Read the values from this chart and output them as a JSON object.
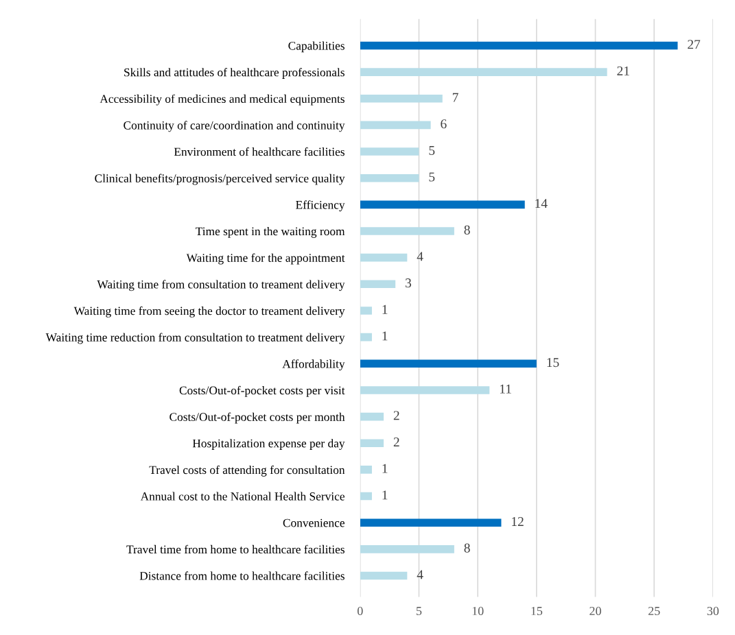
{
  "chart_data": {
    "type": "bar",
    "orientation": "horizontal",
    "categories": [
      "Capabilities",
      "Skills and attitudes of healthcare professionals",
      "Accessibility of medicines and medical equipments",
      "Continuity of care/coordination and continuity",
      "Environment of healthcare facilities",
      "Clinical benefits/prognosis/perceived service quality",
      "Efficiency",
      "Time spent in the waiting room",
      "Waiting time for the appointment",
      "Waiting time from consultation to treament delivery",
      "Waiting time from seeing the doctor to treament delivery",
      "Waiting time reduction from consultation to treatment delivery",
      "Affordability",
      "Costs/Out-of-pocket costs per visit",
      "Costs/Out-of-pocket costs per month",
      "Hospitalization expense per day",
      "Travel costs of attending for consultation",
      "Annual cost to the National Health Service",
      "Convenience",
      "Travel time from home to healthcare facilities",
      "Distance from home to healthcare facilities"
    ],
    "values": [
      27,
      21,
      7,
      6,
      5,
      5,
      14,
      8,
      4,
      3,
      1,
      1,
      15,
      11,
      2,
      2,
      1,
      1,
      12,
      8,
      4
    ],
    "colors": [
      "#0070c0",
      "#b7dde8",
      "#b7dde8",
      "#b7dde8",
      "#b7dde8",
      "#b7dde8",
      "#0070c0",
      "#b7dde8",
      "#b7dde8",
      "#b7dde8",
      "#b7dde8",
      "#b7dde8",
      "#0070c0",
      "#b7dde8",
      "#b7dde8",
      "#b7dde8",
      "#b7dde8",
      "#b7dde8",
      "#0070c0",
      "#b7dde8",
      "#b7dde8"
    ],
    "xlim": [
      0,
      30
    ],
    "xticks": [
      0,
      5,
      10,
      15,
      20,
      25,
      30
    ],
    "grid": "x",
    "data_labels": true
  }
}
